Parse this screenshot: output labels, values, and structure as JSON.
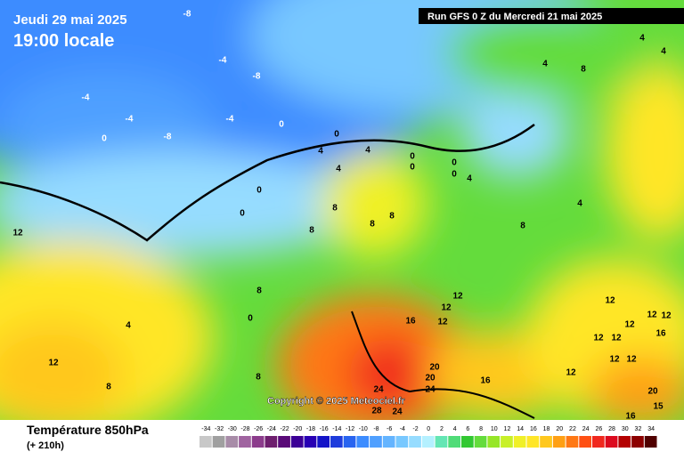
{
  "header": {
    "date": "Jeudi 29 mai 2025",
    "time": "19:00 locale",
    "run": "Run GFS 0 Z du Mercredi 21 mai 2025"
  },
  "copyright": "Copyright © 2025 Meteociel.fr",
  "footer": {
    "title": "Température 850hPa",
    "lead": "(+ 210h)"
  },
  "legend": {
    "values": [
      -34,
      -32,
      -30,
      -28,
      -26,
      -24,
      -22,
      -20,
      -18,
      -16,
      -14,
      -12,
      -10,
      -8,
      -6,
      -4,
      -2,
      0,
      2,
      4,
      6,
      8,
      10,
      12,
      14,
      16,
      18,
      20,
      22,
      24,
      26,
      28,
      30,
      32,
      34
    ],
    "colors": [
      "#c8c8c8",
      "#a0a0a0",
      "#a88ca8",
      "#a064a0",
      "#8c3c8c",
      "#6e1e6e",
      "#5a0a78",
      "#3c0096",
      "#2800b4",
      "#1414c8",
      "#1e3cdc",
      "#2864f0",
      "#3c8cff",
      "#50a0ff",
      "#64b4ff",
      "#78c8ff",
      "#96dcff",
      "#b4f0ff",
      "#64e6b4",
      "#50dc78",
      "#32c832",
      "#64dc3c",
      "#96e628",
      "#c8f028",
      "#f0f028",
      "#ffe628",
      "#ffc81e",
      "#ffa014",
      "#ff7814",
      "#ff5014",
      "#f0281e",
      "#dc0a1e",
      "#b40000",
      "#8c0000",
      "#500000"
    ]
  },
  "map_labels": [
    "-8",
    "-4",
    "-8",
    "-4",
    "-4",
    "-8",
    "0",
    "-4",
    "0",
    "0",
    "4",
    "4",
    "4",
    "0",
    "0",
    "0",
    "0",
    "4",
    "0",
    "0",
    "8",
    "8",
    "8",
    "8",
    "12",
    "8",
    "0",
    "4",
    "12",
    "8",
    "8",
    "4",
    "4",
    "4",
    "8",
    "4",
    "8",
    "12",
    "12",
    "16",
    "12",
    "12",
    "12",
    "12",
    "12",
    "16",
    "12",
    "12",
    "16",
    "12",
    "12",
    "12",
    "20",
    "20",
    "24",
    "24",
    "28",
    "24",
    "20",
    "16",
    "15"
  ]
}
